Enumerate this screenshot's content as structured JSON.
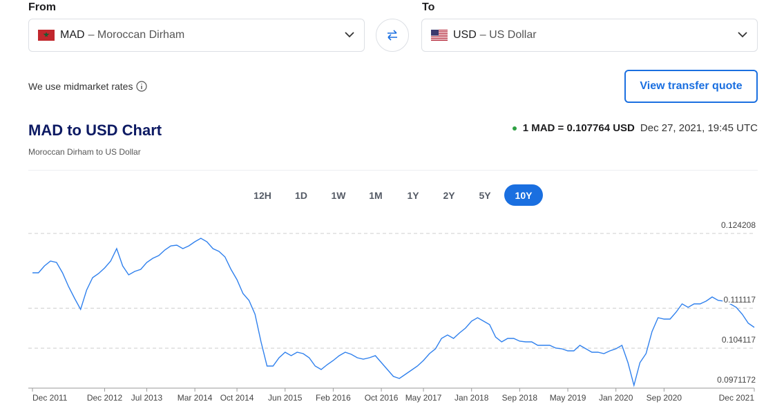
{
  "converter": {
    "from_label": "From",
    "to_label": "To",
    "from": {
      "code": "MAD",
      "name": "– Moroccan Dirham"
    },
    "to": {
      "code": "USD",
      "name": "– US Dollar"
    },
    "note": "We use midmarket rates",
    "quote_button": "View transfer quote"
  },
  "header": {
    "title": "MAD to USD Chart",
    "subtitle": "Moroccan Dirham to US Dollar",
    "rate": "1 MAD = 0.107764 USD",
    "timestamp": "Dec 27, 2021, 19:45 UTC"
  },
  "ranges": {
    "options": [
      "12H",
      "1D",
      "1W",
      "1M",
      "1Y",
      "2Y",
      "5Y",
      "10Y"
    ],
    "active": 7
  },
  "chart": {
    "type": "line",
    "color": "#2f80ed",
    "grid": true,
    "x": [
      "Dec 2011",
      "Jan 2012",
      "Feb 2012",
      "Mar 2012",
      "Apr 2012",
      "May 2012",
      "Jun 2012",
      "Jul 2012",
      "Aug 2012",
      "Sep 2012",
      "Oct 2012",
      "Nov 2012",
      "Dec 2012",
      "Jan 2013",
      "Feb 2013",
      "Mar 2013",
      "Apr 2013",
      "May 2013",
      "Jun 2013",
      "Jul 2013",
      "Aug 2013",
      "Sep 2013",
      "Oct 2013",
      "Nov 2013",
      "Dec 2013",
      "Jan 2014",
      "Feb 2014",
      "Mar 2014",
      "Apr 2014",
      "May 2014",
      "Jun 2014",
      "Jul 2014",
      "Aug 2014",
      "Sep 2014",
      "Oct 2014",
      "Nov 2014",
      "Dec 2014",
      "Jan 2015",
      "Feb 2015",
      "Mar 2015",
      "Apr 2015",
      "May 2015",
      "Jun 2015",
      "Jul 2015",
      "Aug 2015",
      "Sep 2015",
      "Oct 2015",
      "Nov 2015",
      "Dec 2015",
      "Jan 2016",
      "Feb 2016",
      "Mar 2016",
      "Apr 2016",
      "May 2016",
      "Jun 2016",
      "Jul 2016",
      "Aug 2016",
      "Sep 2016",
      "Oct 2016",
      "Nov 2016",
      "Dec 2016",
      "Jan 2017",
      "Feb 2017",
      "Mar 2017",
      "Apr 2017",
      "May 2017",
      "Jun 2017",
      "Jul 2017",
      "Aug 2017",
      "Sep 2017",
      "Oct 2017",
      "Nov 2017",
      "Dec 2017",
      "Jan 2018",
      "Feb 2018",
      "Mar 2018",
      "Apr 2018",
      "May 2018",
      "Jun 2018",
      "Jul 2018",
      "Aug 2018",
      "Sep 2018",
      "Oct 2018",
      "Nov 2018",
      "Dec 2018",
      "Jan 2019",
      "Feb 2019",
      "Mar 2019",
      "Apr 2019",
      "May 2019",
      "Jun 2019",
      "Jul 2019",
      "Aug 2019",
      "Sep 2019",
      "Oct 2019",
      "Nov 2019",
      "Dec 2019",
      "Jan 2020",
      "Feb 2020",
      "Mar 2020",
      "Apr 2020",
      "May 2020",
      "Jun 2020",
      "Jul 2020",
      "Aug 2020",
      "Sep 2020",
      "Oct 2020",
      "Nov 2020",
      "Dec 2020",
      "Jan 2021",
      "Feb 2021",
      "Mar 2021",
      "Apr 2021",
      "May 2021",
      "Jun 2021",
      "Jul 2021",
      "Aug 2021",
      "Sep 2021",
      "Oct 2021",
      "Nov 2021",
      "Dec 2021"
    ],
    "values": [
      0.11731,
      0.11731,
      0.11852,
      0.11937,
      0.11913,
      0.11731,
      0.1149,
      0.11284,
      0.1109,
      0.11429,
      0.11647,
      0.11719,
      0.11816,
      0.11937,
      0.12155,
      0.11852,
      0.11695,
      0.11756,
      0.11792,
      0.11913,
      0.11985,
      0.12034,
      0.12131,
      0.12203,
      0.12215,
      0.12155,
      0.12203,
      0.12276,
      0.12336,
      0.12276,
      0.12155,
      0.12106,
      0.1201,
      0.11792,
      0.1161,
      0.11369,
      0.11248,
      0.11006,
      0.10522,
      0.10099,
      0.10099,
      0.10244,
      0.10341,
      0.1028,
      0.10341,
      0.10316,
      0.10244,
      0.10099,
      0.10038,
      0.10123,
      0.10195,
      0.1028,
      0.10341,
      0.10304,
      0.10244,
      0.1022,
      0.10244,
      0.1028,
      0.10159,
      0.10038,
      0.09917,
      0.09881,
      0.09954,
      0.10026,
      0.10099,
      0.10195,
      0.10316,
      0.10401,
      0.10582,
      0.10643,
      0.10582,
      0.10679,
      0.10764,
      0.10885,
      0.10945,
      0.10885,
      0.10824,
      0.10607,
      0.10522,
      0.10582,
      0.10582,
      0.10534,
      0.10522,
      0.10522,
      0.10462,
      0.10462,
      0.10462,
      0.10413,
      0.10401,
      0.10365,
      0.10365,
      0.10462,
      0.10401,
      0.10341,
      0.10341,
      0.10316,
      0.10365,
      0.10401,
      0.10462,
      0.10159,
      0.0976,
      0.10159,
      0.10316,
      0.10703,
      0.10945,
      0.10921,
      0.10921,
      0.11042,
      0.11187,
      0.11127,
      0.11187,
      0.11187,
      0.11236,
      0.11308,
      0.11248,
      0.11236,
      0.11187,
      0.11127,
      0.11006,
      0.10848,
      0.10776
    ],
    "xticks": [
      "Dec 2011",
      "Dec 2012",
      "Jul 2013",
      "Mar 2014",
      "Oct 2014",
      "Jun 2015",
      "Feb 2016",
      "Oct 2016",
      "May 2017",
      "Jan 2018",
      "Sep 2018",
      "May 2019",
      "Jan 2020",
      "Sep 2020",
      "Dec 2021"
    ],
    "ylim": [
      0.0971172,
      0.124208
    ],
    "yticks": [
      0.0971172,
      0.104117,
      0.111117,
      0.124208
    ]
  }
}
